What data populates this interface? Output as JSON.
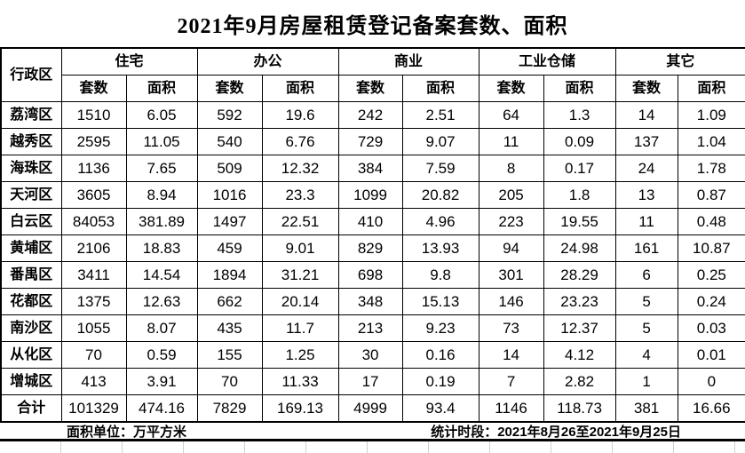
{
  "title": "2021年9月房屋租赁登记备案套数、面积",
  "table": {
    "corner_header": "行政区",
    "groups": [
      {
        "label": "住宅"
      },
      {
        "label": "办公"
      },
      {
        "label": "商业"
      },
      {
        "label": "工业仓储"
      },
      {
        "label": "其它"
      }
    ],
    "sub_headers": [
      "套数",
      "面积",
      "套数",
      "面积",
      "套数",
      "面积",
      "套数",
      "面积",
      "套数",
      "面积"
    ],
    "rows": [
      {
        "district": "荔湾区",
        "values": [
          "1510",
          "6.05",
          "592",
          "19.6",
          "242",
          "2.51",
          "64",
          "1.3",
          "14",
          "1.09"
        ]
      },
      {
        "district": "越秀区",
        "values": [
          "2595",
          "11.05",
          "540",
          "6.76",
          "729",
          "9.07",
          "11",
          "0.09",
          "137",
          "1.04"
        ]
      },
      {
        "district": "海珠区",
        "values": [
          "1136",
          "7.65",
          "509",
          "12.32",
          "384",
          "7.59",
          "8",
          "0.17",
          "24",
          "1.78"
        ]
      },
      {
        "district": "天河区",
        "values": [
          "3605",
          "8.94",
          "1016",
          "23.3",
          "1099",
          "20.82",
          "205",
          "1.8",
          "13",
          "0.87"
        ]
      },
      {
        "district": "白云区",
        "values": [
          "84053",
          "381.89",
          "1497",
          "22.51",
          "410",
          "4.96",
          "223",
          "19.55",
          "11",
          "0.48"
        ]
      },
      {
        "district": "黄埔区",
        "values": [
          "2106",
          "18.83",
          "459",
          "9.01",
          "829",
          "13.93",
          "94",
          "24.98",
          "161",
          "10.87"
        ]
      },
      {
        "district": "番禺区",
        "values": [
          "3411",
          "14.54",
          "1894",
          "31.21",
          "698",
          "9.8",
          "301",
          "28.29",
          "6",
          "0.25"
        ]
      },
      {
        "district": "花都区",
        "values": [
          "1375",
          "12.63",
          "662",
          "20.14",
          "348",
          "15.13",
          "146",
          "23.23",
          "5",
          "0.24"
        ]
      },
      {
        "district": "南沙区",
        "values": [
          "1055",
          "8.07",
          "435",
          "11.7",
          "213",
          "9.23",
          "73",
          "12.37",
          "5",
          "0.03"
        ]
      },
      {
        "district": "从化区",
        "values": [
          "70",
          "0.59",
          "155",
          "1.25",
          "30",
          "0.16",
          "14",
          "4.12",
          "4",
          "0.01"
        ]
      },
      {
        "district": "增城区",
        "values": [
          "413",
          "3.91",
          "70",
          "11.33",
          "17",
          "0.19",
          "7",
          "2.82",
          "1",
          "0"
        ]
      }
    ],
    "total_row": {
      "district": "合计",
      "values": [
        "101329",
        "474.16",
        "7829",
        "169.13",
        "4999",
        "93.4",
        "1146",
        "118.73",
        "381",
        "16.66"
      ]
    }
  },
  "footer": {
    "unit_note": "面积单位：万平方米",
    "period_note": "统计时段：2021年8月26至2021年9月25日"
  },
  "colors": {
    "background": "#ffffff",
    "border": "#000000",
    "text": "#000000",
    "faint_gridline": "#cfcfcf"
  }
}
